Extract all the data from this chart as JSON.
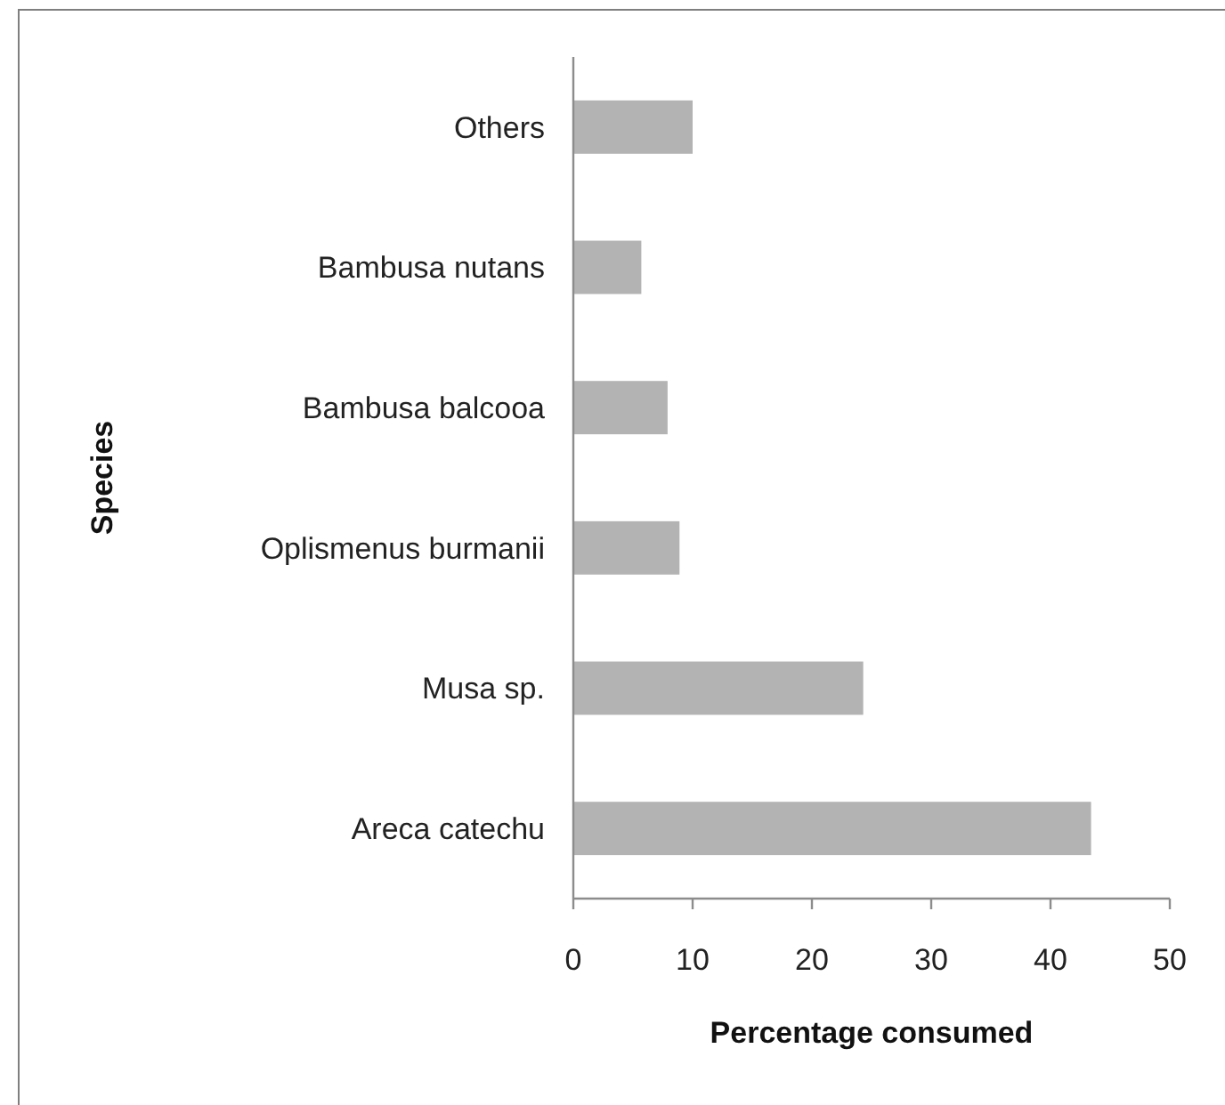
{
  "chart_data": {
    "type": "bar",
    "orientation": "horizontal",
    "xlabel": "Percentage consumed",
    "ylabel": "Species",
    "categories": [
      "Others",
      "Bambusa nutans",
      "Bambusa balcooa",
      "Oplismenus burmanii",
      "Musa sp.",
      "Areca catechu"
    ],
    "values": [
      10,
      5.7,
      7.9,
      8.9,
      24.3,
      43.4
    ],
    "color": "#b3b3b3",
    "xlim": [
      0,
      50
    ],
    "xticks": [
      0,
      10,
      20,
      30,
      40,
      50
    ]
  }
}
